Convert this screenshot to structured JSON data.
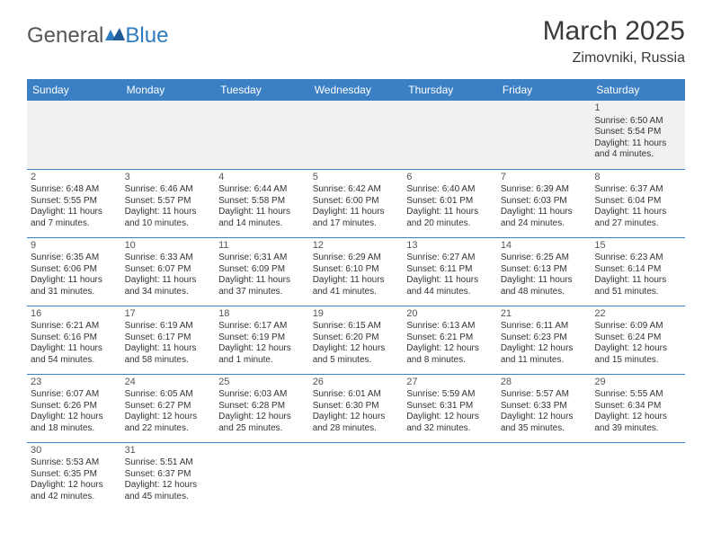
{
  "logo": {
    "part1": "General",
    "part2": "Blue"
  },
  "header": {
    "month": "March 2025",
    "location": "Zimovniki, Russia"
  },
  "colors": {
    "header_bg": "#3b7fc4",
    "header_text": "#ffffff",
    "border": "#3b7fc4",
    "blank_bg": "#f1f1f1"
  },
  "day_labels": [
    "Sunday",
    "Monday",
    "Tuesday",
    "Wednesday",
    "Thursday",
    "Friday",
    "Saturday"
  ],
  "weeks": [
    [
      null,
      null,
      null,
      null,
      null,
      null,
      {
        "n": "1",
        "sr": "Sunrise: 6:50 AM",
        "ss": "Sunset: 5:54 PM",
        "dl1": "Daylight: 11 hours",
        "dl2": "and 4 minutes."
      }
    ],
    [
      {
        "n": "2",
        "sr": "Sunrise: 6:48 AM",
        "ss": "Sunset: 5:55 PM",
        "dl1": "Daylight: 11 hours",
        "dl2": "and 7 minutes."
      },
      {
        "n": "3",
        "sr": "Sunrise: 6:46 AM",
        "ss": "Sunset: 5:57 PM",
        "dl1": "Daylight: 11 hours",
        "dl2": "and 10 minutes."
      },
      {
        "n": "4",
        "sr": "Sunrise: 6:44 AM",
        "ss": "Sunset: 5:58 PM",
        "dl1": "Daylight: 11 hours",
        "dl2": "and 14 minutes."
      },
      {
        "n": "5",
        "sr": "Sunrise: 6:42 AM",
        "ss": "Sunset: 6:00 PM",
        "dl1": "Daylight: 11 hours",
        "dl2": "and 17 minutes."
      },
      {
        "n": "6",
        "sr": "Sunrise: 6:40 AM",
        "ss": "Sunset: 6:01 PM",
        "dl1": "Daylight: 11 hours",
        "dl2": "and 20 minutes."
      },
      {
        "n": "7",
        "sr": "Sunrise: 6:39 AM",
        "ss": "Sunset: 6:03 PM",
        "dl1": "Daylight: 11 hours",
        "dl2": "and 24 minutes."
      },
      {
        "n": "8",
        "sr": "Sunrise: 6:37 AM",
        "ss": "Sunset: 6:04 PM",
        "dl1": "Daylight: 11 hours",
        "dl2": "and 27 minutes."
      }
    ],
    [
      {
        "n": "9",
        "sr": "Sunrise: 6:35 AM",
        "ss": "Sunset: 6:06 PM",
        "dl1": "Daylight: 11 hours",
        "dl2": "and 31 minutes."
      },
      {
        "n": "10",
        "sr": "Sunrise: 6:33 AM",
        "ss": "Sunset: 6:07 PM",
        "dl1": "Daylight: 11 hours",
        "dl2": "and 34 minutes."
      },
      {
        "n": "11",
        "sr": "Sunrise: 6:31 AM",
        "ss": "Sunset: 6:09 PM",
        "dl1": "Daylight: 11 hours",
        "dl2": "and 37 minutes."
      },
      {
        "n": "12",
        "sr": "Sunrise: 6:29 AM",
        "ss": "Sunset: 6:10 PM",
        "dl1": "Daylight: 11 hours",
        "dl2": "and 41 minutes."
      },
      {
        "n": "13",
        "sr": "Sunrise: 6:27 AM",
        "ss": "Sunset: 6:11 PM",
        "dl1": "Daylight: 11 hours",
        "dl2": "and 44 minutes."
      },
      {
        "n": "14",
        "sr": "Sunrise: 6:25 AM",
        "ss": "Sunset: 6:13 PM",
        "dl1": "Daylight: 11 hours",
        "dl2": "and 48 minutes."
      },
      {
        "n": "15",
        "sr": "Sunrise: 6:23 AM",
        "ss": "Sunset: 6:14 PM",
        "dl1": "Daylight: 11 hours",
        "dl2": "and 51 minutes."
      }
    ],
    [
      {
        "n": "16",
        "sr": "Sunrise: 6:21 AM",
        "ss": "Sunset: 6:16 PM",
        "dl1": "Daylight: 11 hours",
        "dl2": "and 54 minutes."
      },
      {
        "n": "17",
        "sr": "Sunrise: 6:19 AM",
        "ss": "Sunset: 6:17 PM",
        "dl1": "Daylight: 11 hours",
        "dl2": "and 58 minutes."
      },
      {
        "n": "18",
        "sr": "Sunrise: 6:17 AM",
        "ss": "Sunset: 6:19 PM",
        "dl1": "Daylight: 12 hours",
        "dl2": "and 1 minute."
      },
      {
        "n": "19",
        "sr": "Sunrise: 6:15 AM",
        "ss": "Sunset: 6:20 PM",
        "dl1": "Daylight: 12 hours",
        "dl2": "and 5 minutes."
      },
      {
        "n": "20",
        "sr": "Sunrise: 6:13 AM",
        "ss": "Sunset: 6:21 PM",
        "dl1": "Daylight: 12 hours",
        "dl2": "and 8 minutes."
      },
      {
        "n": "21",
        "sr": "Sunrise: 6:11 AM",
        "ss": "Sunset: 6:23 PM",
        "dl1": "Daylight: 12 hours",
        "dl2": "and 11 minutes."
      },
      {
        "n": "22",
        "sr": "Sunrise: 6:09 AM",
        "ss": "Sunset: 6:24 PM",
        "dl1": "Daylight: 12 hours",
        "dl2": "and 15 minutes."
      }
    ],
    [
      {
        "n": "23",
        "sr": "Sunrise: 6:07 AM",
        "ss": "Sunset: 6:26 PM",
        "dl1": "Daylight: 12 hours",
        "dl2": "and 18 minutes."
      },
      {
        "n": "24",
        "sr": "Sunrise: 6:05 AM",
        "ss": "Sunset: 6:27 PM",
        "dl1": "Daylight: 12 hours",
        "dl2": "and 22 minutes."
      },
      {
        "n": "25",
        "sr": "Sunrise: 6:03 AM",
        "ss": "Sunset: 6:28 PM",
        "dl1": "Daylight: 12 hours",
        "dl2": "and 25 minutes."
      },
      {
        "n": "26",
        "sr": "Sunrise: 6:01 AM",
        "ss": "Sunset: 6:30 PM",
        "dl1": "Daylight: 12 hours",
        "dl2": "and 28 minutes."
      },
      {
        "n": "27",
        "sr": "Sunrise: 5:59 AM",
        "ss": "Sunset: 6:31 PM",
        "dl1": "Daylight: 12 hours",
        "dl2": "and 32 minutes."
      },
      {
        "n": "28",
        "sr": "Sunrise: 5:57 AM",
        "ss": "Sunset: 6:33 PM",
        "dl1": "Daylight: 12 hours",
        "dl2": "and 35 minutes."
      },
      {
        "n": "29",
        "sr": "Sunrise: 5:55 AM",
        "ss": "Sunset: 6:34 PM",
        "dl1": "Daylight: 12 hours",
        "dl2": "and 39 minutes."
      }
    ],
    [
      {
        "n": "30",
        "sr": "Sunrise: 5:53 AM",
        "ss": "Sunset: 6:35 PM",
        "dl1": "Daylight: 12 hours",
        "dl2": "and 42 minutes."
      },
      {
        "n": "31",
        "sr": "Sunrise: 5:51 AM",
        "ss": "Sunset: 6:37 PM",
        "dl1": "Daylight: 12 hours",
        "dl2": "and 45 minutes."
      },
      null,
      null,
      null,
      null,
      null
    ]
  ]
}
